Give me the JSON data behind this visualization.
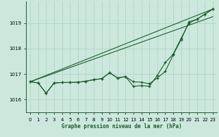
{
  "xlabel": "Graphe pression niveau de la mer (hPa)",
  "xlim": [
    -0.5,
    23.5
  ],
  "ylim": [
    1015.5,
    1019.85
  ],
  "yticks": [
    1016,
    1017,
    1018,
    1019
  ],
  "xticks": [
    0,
    1,
    2,
    3,
    4,
    5,
    6,
    7,
    8,
    9,
    10,
    11,
    12,
    13,
    14,
    15,
    16,
    17,
    18,
    19,
    20,
    21,
    22,
    23
  ],
  "bg_color": "#cce8dd",
  "grid_color": "#b0d4c8",
  "line_color": "#1a5c2a",
  "line1": [
    1016.7,
    1016.65,
    1016.25,
    1016.65,
    1016.67,
    1016.67,
    1016.68,
    1016.72,
    1016.78,
    1016.82,
    1017.05,
    1016.85,
    1016.9,
    1016.7,
    1016.68,
    1016.62,
    1016.85,
    1017.1,
    1017.75,
    1018.35,
    1019.05,
    1019.15,
    1019.35,
    1019.55
  ],
  "line2": [
    1016.7,
    1016.65,
    1016.25,
    1016.65,
    1016.67,
    1016.67,
    1016.68,
    1016.72,
    1016.78,
    1016.82,
    1017.05,
    1016.85,
    1016.9,
    1016.52,
    1016.55,
    1016.52,
    1016.95,
    1017.45,
    1017.78,
    1018.4,
    1019.0,
    1019.15,
    1019.35,
    1019.55
  ],
  "line3": [
    [
      0,
      1016.7
    ],
    [
      23,
      1019.55
    ]
  ],
  "line4": [
    [
      0,
      1016.7
    ],
    [
      23,
      1019.25
    ]
  ]
}
